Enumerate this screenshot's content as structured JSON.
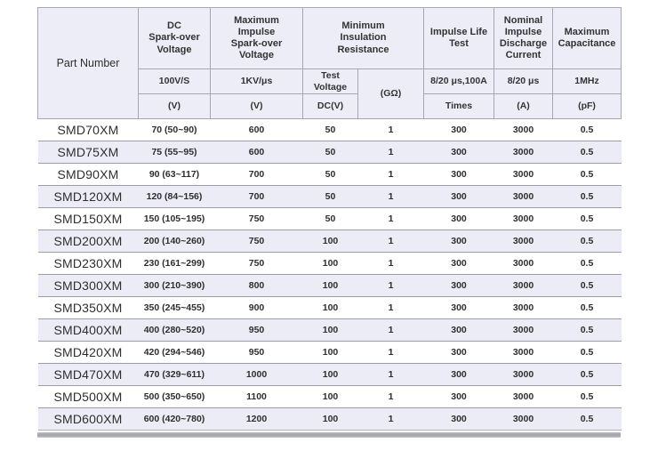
{
  "table": {
    "header": {
      "part_number": "Part Number",
      "dc_sparkover": {
        "title": "DC\nSpark-over\nVoltage",
        "condition": "100V/S",
        "unit": "(V)"
      },
      "max_impulse": {
        "title": "Maximum\nImpulse\nSpark-over\nVoltage",
        "condition": "1KV/μs",
        "unit": "(V)"
      },
      "min_insulation": {
        "title": "Minimum\nInsulation\nResistance",
        "test_voltage": "Test\nVoltage",
        "test_voltage_unit": "DC(V)",
        "unit": "(GΩ)"
      },
      "impulse_life": {
        "title": "Impulse Life\nTest",
        "condition": "8/20 μs,100A",
        "unit": "Times"
      },
      "nominal_discharge": {
        "title": "Nominal\nImpulse\nDischarge\nCurrent",
        "condition": "8/20 μs",
        "unit": "(A)"
      },
      "max_capacitance": {
        "title": "Maximum\nCapacitance",
        "condition": "1MHz",
        "unit": "(pF)"
      }
    },
    "rows": [
      [
        "SMD70XM",
        "70 (50~90)",
        "600",
        "50",
        "1",
        "300",
        "3000",
        "0.5"
      ],
      [
        "SMD75XM",
        "75 (55~95)",
        "600",
        "50",
        "1",
        "300",
        "3000",
        "0.5"
      ],
      [
        "SMD90XM",
        "90 (63~117)",
        "700",
        "50",
        "1",
        "300",
        "3000",
        "0.5"
      ],
      [
        "SMD120XM",
        "120 (84~156)",
        "700",
        "50",
        "1",
        "300",
        "3000",
        "0.5"
      ],
      [
        "SMD150XM",
        "150 (105~195)",
        "750",
        "50",
        "1",
        "300",
        "3000",
        "0.5"
      ],
      [
        "SMD200XM",
        "200 (140~260)",
        "750",
        "100",
        "1",
        "300",
        "3000",
        "0.5"
      ],
      [
        "SMD230XM",
        "230 (161~299)",
        "750",
        "100",
        "1",
        "300",
        "3000",
        "0.5"
      ],
      [
        "SMD300XM",
        "300 (210~390)",
        "800",
        "100",
        "1",
        "300",
        "3000",
        "0.5"
      ],
      [
        "SMD350XM",
        "350 (245~455)",
        "900",
        "100",
        "1",
        "300",
        "3000",
        "0.5"
      ],
      [
        "SMD400XM",
        "400 (280~520)",
        "950",
        "100",
        "1",
        "300",
        "3000",
        "0.5"
      ],
      [
        "SMD420XM",
        "420 (294~546)",
        "950",
        "100",
        "1",
        "300",
        "3000",
        "0.5"
      ],
      [
        "SMD470XM",
        "470 (329~611)",
        "1000",
        "100",
        "1",
        "300",
        "3000",
        "0.5"
      ],
      [
        "SMD500XM",
        "500 (350~650)",
        "1100",
        "100",
        "1",
        "300",
        "3000",
        "0.5"
      ],
      [
        "SMD600XM",
        "600 (420~780)",
        "1200",
        "100",
        "1",
        "300",
        "3000",
        "0.5"
      ]
    ]
  },
  "colors": {
    "header_bg": "#ededf7",
    "stripe_bg": "#ececf6",
    "border_gray": "#a7a7b1",
    "row_separator": "#9d9da7",
    "bottom_bar": "#a2a2ac",
    "text": "#2e2e2e"
  }
}
